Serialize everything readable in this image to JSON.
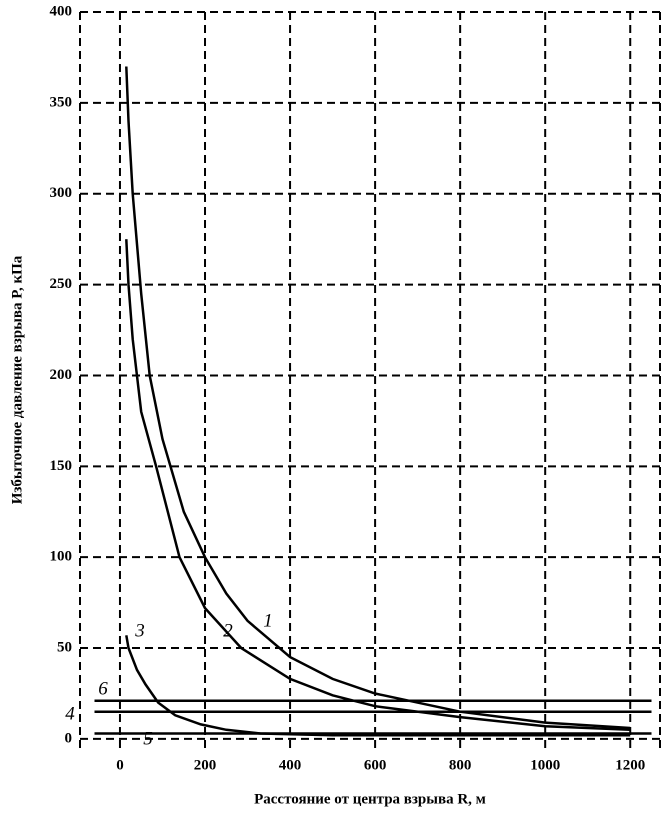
{
  "chart_data": {
    "type": "line",
    "x_label": "Расстояние от центра взрыва   R, м",
    "y_label": "Избыточное давление взрыва   P, кПа",
    "xlim": [
      -94,
      1270
    ],
    "ylim": [
      -5,
      400
    ],
    "xticks": [
      0,
      200,
      400,
      600,
      800,
      1000,
      1200
    ],
    "yticks": [
      0,
      50,
      100,
      150,
      200,
      250,
      300,
      350,
      400
    ],
    "grid": true,
    "series": [
      {
        "name": "1",
        "color": "#000000",
        "x": [
          15,
          20,
          30,
          50,
          70,
          100,
          150,
          200,
          250,
          300,
          400,
          500,
          600,
          800,
          1000,
          1200
        ],
        "values": [
          370,
          340,
          300,
          245,
          200,
          165,
          125,
          100,
          80,
          65,
          45,
          33,
          25,
          15,
          9,
          6
        ]
      },
      {
        "name": "2",
        "color": "#000000",
        "x": [
          15,
          20,
          30,
          50,
          85,
          140,
          200,
          285,
          400,
          500,
          600,
          800,
          1000,
          1200
        ],
        "values": [
          275,
          250,
          220,
          180,
          150,
          100,
          72,
          50,
          33,
          24,
          18,
          12,
          7,
          5
        ]
      },
      {
        "name": "3",
        "color": "#000000",
        "x": [
          15,
          20,
          40,
          60,
          90,
          130,
          190,
          250,
          330,
          500,
          800,
          1200
        ],
        "values": [
          57,
          50,
          38,
          30,
          20,
          13,
          8,
          5,
          3,
          2,
          2,
          2
        ]
      },
      {
        "name": "4",
        "color": "#000000",
        "x": [
          -60,
          1250
        ],
        "values": [
          15,
          15
        ]
      },
      {
        "name": "5",
        "color": "#000000",
        "x": [
          -60,
          1250
        ],
        "values": [
          3,
          3
        ]
      },
      {
        "name": "6",
        "color": "#000000",
        "x": [
          -60,
          1250
        ],
        "values": [
          21,
          21
        ]
      }
    ]
  }
}
